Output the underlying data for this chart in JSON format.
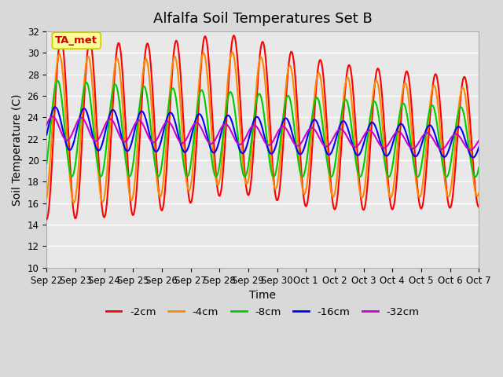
{
  "title": "Alfalfa Soil Temperatures Set B",
  "xlabel": "Time",
  "ylabel": "Soil Temperature (C)",
  "ylim": [
    10,
    32
  ],
  "yticks": [
    10,
    12,
    14,
    16,
    18,
    20,
    22,
    24,
    26,
    28,
    30,
    32
  ],
  "background_color": "#d9d9d9",
  "plot_bg_color": "#e8e8e8",
  "grid_color": "#ffffff",
  "title_fontsize": 13,
  "label_fontsize": 10,
  "tick_fontsize": 8.5,
  "legend_label": "TA_met",
  "legend_box_color": "#ffff99",
  "legend_text_color": "#cc0000",
  "line_colors": {
    "-2cm": "#ff0000",
    "-4cm": "#ff8800",
    "-8cm": "#00cc00",
    "-16cm": "#0000ff",
    "-32cm": "#cc00cc"
  },
  "line_width": 1.5,
  "x_tick_labels": [
    "Sep 22",
    "Sep 23",
    "Sep 24",
    "Sep 25",
    "Sep 26",
    "Sep 27",
    "Sep 28",
    "Sep 29",
    "Sep 30",
    "Oct 1",
    "Oct 2",
    "Oct 3",
    "Oct 4",
    "Oct 5",
    "Oct 6",
    "Oct 7"
  ],
  "n_days": 15
}
